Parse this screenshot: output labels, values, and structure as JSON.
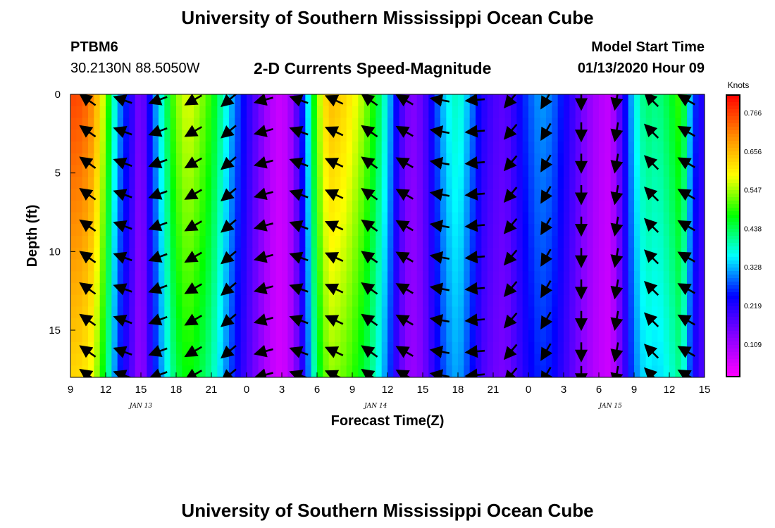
{
  "header": {
    "title": "University of Southern Mississippi Ocean Cube",
    "station_id": "PTBM6",
    "station_coords": "30.2130N 88.5050W",
    "plot_title": "2-D Currents Speed-Magnitude",
    "model_start_label": "Model Start Time",
    "model_start_value": "01/13/2020 Hour 09"
  },
  "footer": {
    "title": "University of Southern Mississippi Ocean Cube"
  },
  "chart_data": {
    "type": "heatmap",
    "title": "2-D Currents Speed-Magnitude",
    "xlabel": "Forecast Time(Z)",
    "ylabel": "Depth (ft)",
    "x_hours_range": [
      0,
      54
    ],
    "x_tick_labels": [
      "9",
      "12",
      "15",
      "18",
      "21",
      "0",
      "3",
      "6",
      "9",
      "12",
      "15",
      "18",
      "21",
      "0",
      "3",
      "6",
      "9",
      "12",
      "15"
    ],
    "date_labels": [
      {
        "label": "JAN 13",
        "hour_offset": 6
      },
      {
        "label": "JAN 14",
        "hour_offset": 26
      },
      {
        "label": "JAN 15",
        "hour_offset": 46
      }
    ],
    "y_range": [
      0,
      18
    ],
    "y_ticks": [
      0,
      5,
      10,
      15
    ],
    "colorbar": {
      "title": "Knots",
      "ticks": [
        "0.766",
        "0.656",
        "0.547",
        "0.438",
        "0.328",
        "0.219",
        "0.109"
      ],
      "range": [
        0,
        0.85
      ],
      "colors": [
        "#ff00ff",
        "#8800ff",
        "#0000ff",
        "#00ffff",
        "#00ff00",
        "#ffff00",
        "#ff8800",
        "#ff0000"
      ]
    },
    "speed_profile": {
      "hours": [
        0,
        1,
        2,
        3,
        3.5,
        4,
        5,
        6,
        7,
        8,
        9,
        10,
        11,
        12,
        13,
        14,
        15,
        16,
        17,
        18,
        19,
        20,
        21,
        22,
        23,
        24,
        25,
        26,
        27,
        28,
        29,
        30,
        31,
        32,
        33,
        34,
        35,
        36,
        37,
        38,
        39,
        40,
        41,
        42,
        43,
        44,
        45,
        46,
        47,
        48,
        49,
        50,
        51,
        52,
        53,
        54
      ],
      "speed": [
        0.79,
        0.78,
        0.72,
        0.55,
        0.44,
        0.33,
        0.23,
        0.12,
        0.28,
        0.42,
        0.55,
        0.6,
        0.56,
        0.5,
        0.4,
        0.3,
        0.22,
        0.15,
        0.08,
        0.05,
        0.12,
        0.3,
        0.55,
        0.68,
        0.66,
        0.62,
        0.56,
        0.48,
        0.36,
        0.2,
        0.12,
        0.16,
        0.26,
        0.36,
        0.4,
        0.32,
        0.22,
        0.18,
        0.16,
        0.22,
        0.28,
        0.32,
        0.3,
        0.24,
        0.18,
        0.12,
        0.08,
        0.06,
        0.2,
        0.36,
        0.44,
        0.42,
        0.46,
        0.52,
        0.28,
        0.2
      ],
      "depth_factor_top": 1.0,
      "depth_factor_bottom": 0.82
    },
    "vector_directions_deg": {
      "hours": [
        1.5,
        4.5,
        7.5,
        10.5,
        13.5,
        16.5,
        19.5,
        22.5,
        25.5,
        28.5,
        31.5,
        34.5,
        37.5,
        40.5,
        43.5,
        46.5,
        49.5,
        52.5
      ],
      "angle": [
        215,
        200,
        160,
        150,
        140,
        165,
        200,
        205,
        215,
        210,
        190,
        175,
        130,
        120,
        90,
        100,
        225,
        210
      ]
    }
  }
}
